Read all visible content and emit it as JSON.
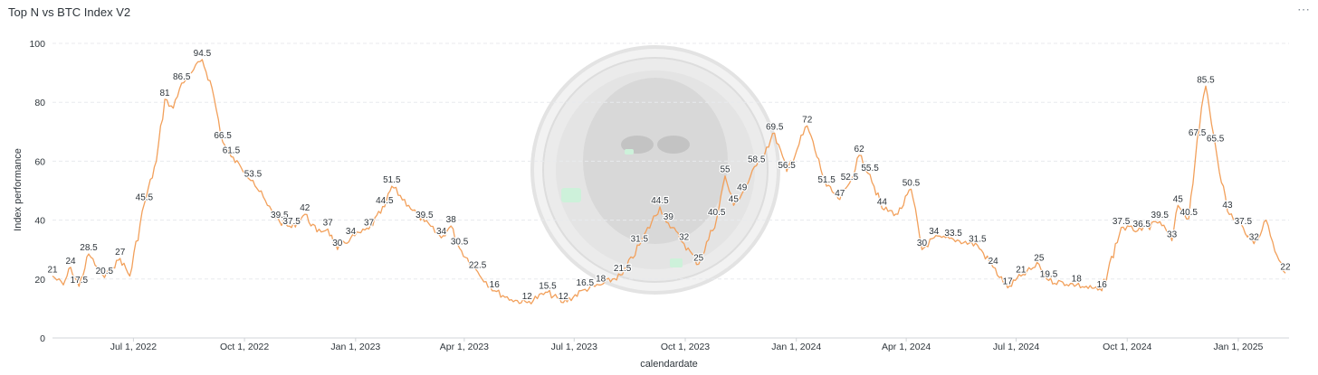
{
  "header": {
    "title": "Top N vs BTC Index V2",
    "menu_icon": "more-horizontal-icon"
  },
  "colors": {
    "line": "#F2A05B",
    "grid": "#e8eaed",
    "text": "#2e353b"
  },
  "chart_data": {
    "type": "line",
    "title": "Top N vs BTC Index V2",
    "xlabel": "calendardate",
    "ylabel": "Index performance",
    "ylim": [
      0,
      100
    ],
    "yticks": [
      0,
      20,
      40,
      60,
      80,
      100
    ],
    "xlim": [
      "2022-04-25",
      "2025-02-12"
    ],
    "xticks": [
      {
        "date": "2022-07-01",
        "label": "Jul 1, 2022"
      },
      {
        "date": "2022-10-01",
        "label": "Oct 1, 2022"
      },
      {
        "date": "2023-01-01",
        "label": "Jan 1, 2023"
      },
      {
        "date": "2023-04-01",
        "label": "Apr 1, 2023"
      },
      {
        "date": "2023-07-01",
        "label": "Jul 1, 2023"
      },
      {
        "date": "2023-10-01",
        "label": "Oct 1, 2023"
      },
      {
        "date": "2024-01-01",
        "label": "Jan 1, 2024"
      },
      {
        "date": "2024-04-01",
        "label": "Apr 1, 2024"
      },
      {
        "date": "2024-07-01",
        "label": "Jul 1, 2024"
      },
      {
        "date": "2024-10-01",
        "label": "Oct 1, 2024"
      },
      {
        "date": "2025-01-01",
        "label": "Jan 1, 2025"
      }
    ],
    "grid": true,
    "series": [
      {
        "points": [
          {
            "x": "2022-04-25",
            "y": 21,
            "label": "21"
          },
          {
            "x": "2022-05-04",
            "y": 18
          },
          {
            "x": "2022-05-10",
            "y": 24,
            "label": "24"
          },
          {
            "x": "2022-05-17",
            "y": 17.5,
            "label": "17.5"
          },
          {
            "x": "2022-05-25",
            "y": 28.5,
            "label": "28.5"
          },
          {
            "x": "2022-06-01",
            "y": 24
          },
          {
            "x": "2022-06-07",
            "y": 20.5,
            "label": "20.5"
          },
          {
            "x": "2022-06-14",
            "y": 24
          },
          {
            "x": "2022-06-20",
            "y": 27,
            "label": "27"
          },
          {
            "x": "2022-06-28",
            "y": 21
          },
          {
            "x": "2022-07-10",
            "y": 45.5,
            "label": "45.5"
          },
          {
            "x": "2022-07-20",
            "y": 60
          },
          {
            "x": "2022-07-27",
            "y": 81,
            "label": "81"
          },
          {
            "x": "2022-08-03",
            "y": 78
          },
          {
            "x": "2022-08-10",
            "y": 86.5,
            "label": "86.5"
          },
          {
            "x": "2022-08-18",
            "y": 90
          },
          {
            "x": "2022-08-27",
            "y": 94.5,
            "label": "94.5"
          },
          {
            "x": "2022-09-04",
            "y": 85
          },
          {
            "x": "2022-09-13",
            "y": 66.5,
            "label": "66.5"
          },
          {
            "x": "2022-09-20",
            "y": 61.5,
            "label": "61.5"
          },
          {
            "x": "2022-09-28",
            "y": 58
          },
          {
            "x": "2022-10-08",
            "y": 53.5,
            "label": "53.5"
          },
          {
            "x": "2022-10-20",
            "y": 45
          },
          {
            "x": "2022-10-30",
            "y": 39.5,
            "label": "39.5"
          },
          {
            "x": "2022-11-09",
            "y": 37.5,
            "label": "37.5"
          },
          {
            "x": "2022-11-20",
            "y": 42,
            "label": "42"
          },
          {
            "x": "2022-11-30",
            "y": 36
          },
          {
            "x": "2022-12-09",
            "y": 37,
            "label": "37"
          },
          {
            "x": "2022-12-17",
            "y": 30,
            "label": "30"
          },
          {
            "x": "2022-12-28",
            "y": 34,
            "label": "34"
          },
          {
            "x": "2023-01-12",
            "y": 37,
            "label": "37"
          },
          {
            "x": "2023-01-25",
            "y": 44.5,
            "label": "44.5"
          },
          {
            "x": "2023-01-31",
            "y": 51.5,
            "label": "51.5"
          },
          {
            "x": "2023-02-14",
            "y": 45
          },
          {
            "x": "2023-02-27",
            "y": 39.5,
            "label": "39.5"
          },
          {
            "x": "2023-03-13",
            "y": 34,
            "label": "34"
          },
          {
            "x": "2023-03-21",
            "y": 38,
            "label": "38"
          },
          {
            "x": "2023-03-28",
            "y": 30.5,
            "label": "30.5"
          },
          {
            "x": "2023-04-12",
            "y": 22.5,
            "label": "22.5"
          },
          {
            "x": "2023-04-26",
            "y": 16,
            "label": "16"
          },
          {
            "x": "2023-05-10",
            "y": 13
          },
          {
            "x": "2023-05-23",
            "y": 12,
            "label": "12"
          },
          {
            "x": "2023-06-09",
            "y": 15.5,
            "label": "15.5"
          },
          {
            "x": "2023-06-22",
            "y": 12,
            "label": "12"
          },
          {
            "x": "2023-07-10",
            "y": 16.5,
            "label": "16.5"
          },
          {
            "x": "2023-07-23",
            "y": 18,
            "label": "18"
          },
          {
            "x": "2023-08-10",
            "y": 21.5,
            "label": "21.5"
          },
          {
            "x": "2023-08-24",
            "y": 31.5,
            "label": "31.5"
          },
          {
            "x": "2023-09-10",
            "y": 44.5,
            "label": "44.5"
          },
          {
            "x": "2023-09-17",
            "y": 39,
            "label": "39"
          },
          {
            "x": "2023-09-30",
            "y": 32,
            "label": "32"
          },
          {
            "x": "2023-10-12",
            "y": 25,
            "label": "25"
          },
          {
            "x": "2023-10-27",
            "y": 40.5,
            "label": "40.5"
          },
          {
            "x": "2023-11-03",
            "y": 55,
            "label": "55"
          },
          {
            "x": "2023-11-10",
            "y": 45,
            "label": "45"
          },
          {
            "x": "2023-11-17",
            "y": 49,
            "label": "49"
          },
          {
            "x": "2023-11-29",
            "y": 58.5,
            "label": "58.5"
          },
          {
            "x": "2023-12-14",
            "y": 69.5,
            "label": "69.5"
          },
          {
            "x": "2023-12-24",
            "y": 56.5,
            "label": "56.5"
          },
          {
            "x": "2024-01-10",
            "y": 72,
            "label": "72"
          },
          {
            "x": "2024-01-26",
            "y": 51.5,
            "label": "51.5"
          },
          {
            "x": "2024-02-06",
            "y": 47,
            "label": "47"
          },
          {
            "x": "2024-02-14",
            "y": 52.5,
            "label": "52.5"
          },
          {
            "x": "2024-02-22",
            "y": 62,
            "label": "62"
          },
          {
            "x": "2024-03-02",
            "y": 55.5,
            "label": "55.5"
          },
          {
            "x": "2024-03-12",
            "y": 44,
            "label": "44"
          },
          {
            "x": "2024-03-25",
            "y": 42
          },
          {
            "x": "2024-04-05",
            "y": 50.5,
            "label": "50.5"
          },
          {
            "x": "2024-04-14",
            "y": 30,
            "label": "30"
          },
          {
            "x": "2024-04-24",
            "y": 34,
            "label": "34"
          },
          {
            "x": "2024-05-10",
            "y": 33.5,
            "label": "33.5"
          },
          {
            "x": "2024-05-30",
            "y": 31.5,
            "label": "31.5"
          },
          {
            "x": "2024-06-12",
            "y": 24,
            "label": "24"
          },
          {
            "x": "2024-06-24",
            "y": 17,
            "label": "17"
          },
          {
            "x": "2024-07-05",
            "y": 21,
            "label": "21"
          },
          {
            "x": "2024-07-20",
            "y": 25,
            "label": "25"
          },
          {
            "x": "2024-07-28",
            "y": 19.5,
            "label": "19.5"
          },
          {
            "x": "2024-08-20",
            "y": 18,
            "label": "18"
          },
          {
            "x": "2024-09-10",
            "y": 16,
            "label": "16"
          },
          {
            "x": "2024-09-26",
            "y": 37.5,
            "label": "37.5"
          },
          {
            "x": "2024-10-13",
            "y": 36.5,
            "label": "36.5"
          },
          {
            "x": "2024-10-28",
            "y": 39.5,
            "label": "39.5"
          },
          {
            "x": "2024-11-07",
            "y": 33,
            "label": "33"
          },
          {
            "x": "2024-11-12",
            "y": 45,
            "label": "45"
          },
          {
            "x": "2024-11-21",
            "y": 40.5,
            "label": "40.5"
          },
          {
            "x": "2024-11-28",
            "y": 67.5,
            "label": "67.5"
          },
          {
            "x": "2024-12-05",
            "y": 85.5,
            "label": "85.5"
          },
          {
            "x": "2024-12-13",
            "y": 65.5,
            "label": "65.5"
          },
          {
            "x": "2024-12-23",
            "y": 43,
            "label": "43"
          },
          {
            "x": "2025-01-05",
            "y": 37.5,
            "label": "37.5"
          },
          {
            "x": "2025-01-14",
            "y": 32,
            "label": "32"
          },
          {
            "x": "2025-01-24",
            "y": 40
          },
          {
            "x": "2025-02-02",
            "y": 28
          },
          {
            "x": "2025-02-09",
            "y": 22,
            "label": "22"
          }
        ]
      }
    ]
  }
}
